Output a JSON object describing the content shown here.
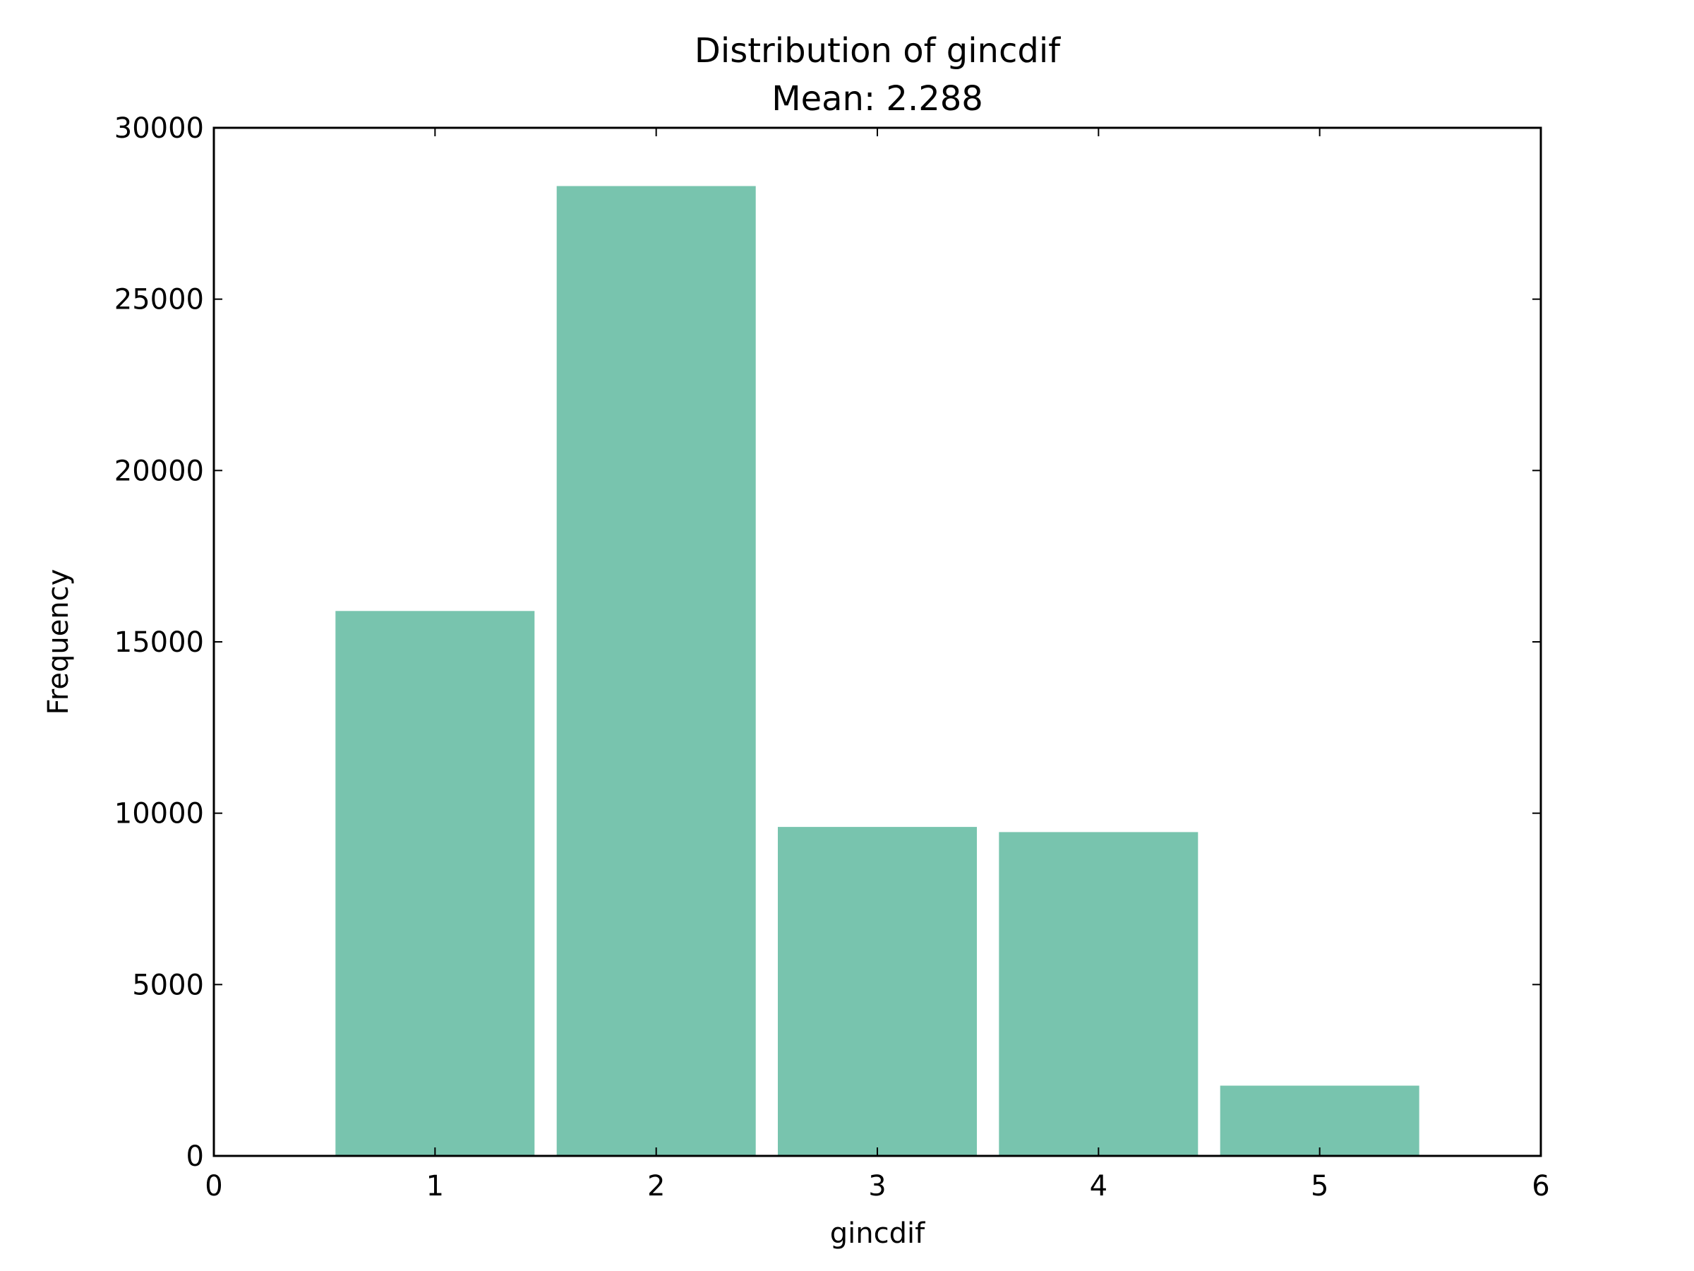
{
  "chart_data": {
    "type": "bar",
    "title": "Distribution of gincdif",
    "subtitle": "Mean: 2.288",
    "xlabel": "gincdif",
    "ylabel": "Frequency",
    "x": [
      1,
      2,
      3,
      4,
      5
    ],
    "values": [
      15900,
      28300,
      9600,
      9450,
      2050
    ],
    "bar_width": 0.9,
    "xlim": [
      0,
      6
    ],
    "ylim": [
      0,
      30000
    ],
    "xticks": [
      0,
      1,
      2,
      3,
      4,
      5,
      6
    ],
    "yticks": [
      0,
      5000,
      10000,
      15000,
      20000,
      25000,
      30000
    ],
    "bar_color": "#78c4ae",
    "grid": false,
    "legend": "none"
  }
}
